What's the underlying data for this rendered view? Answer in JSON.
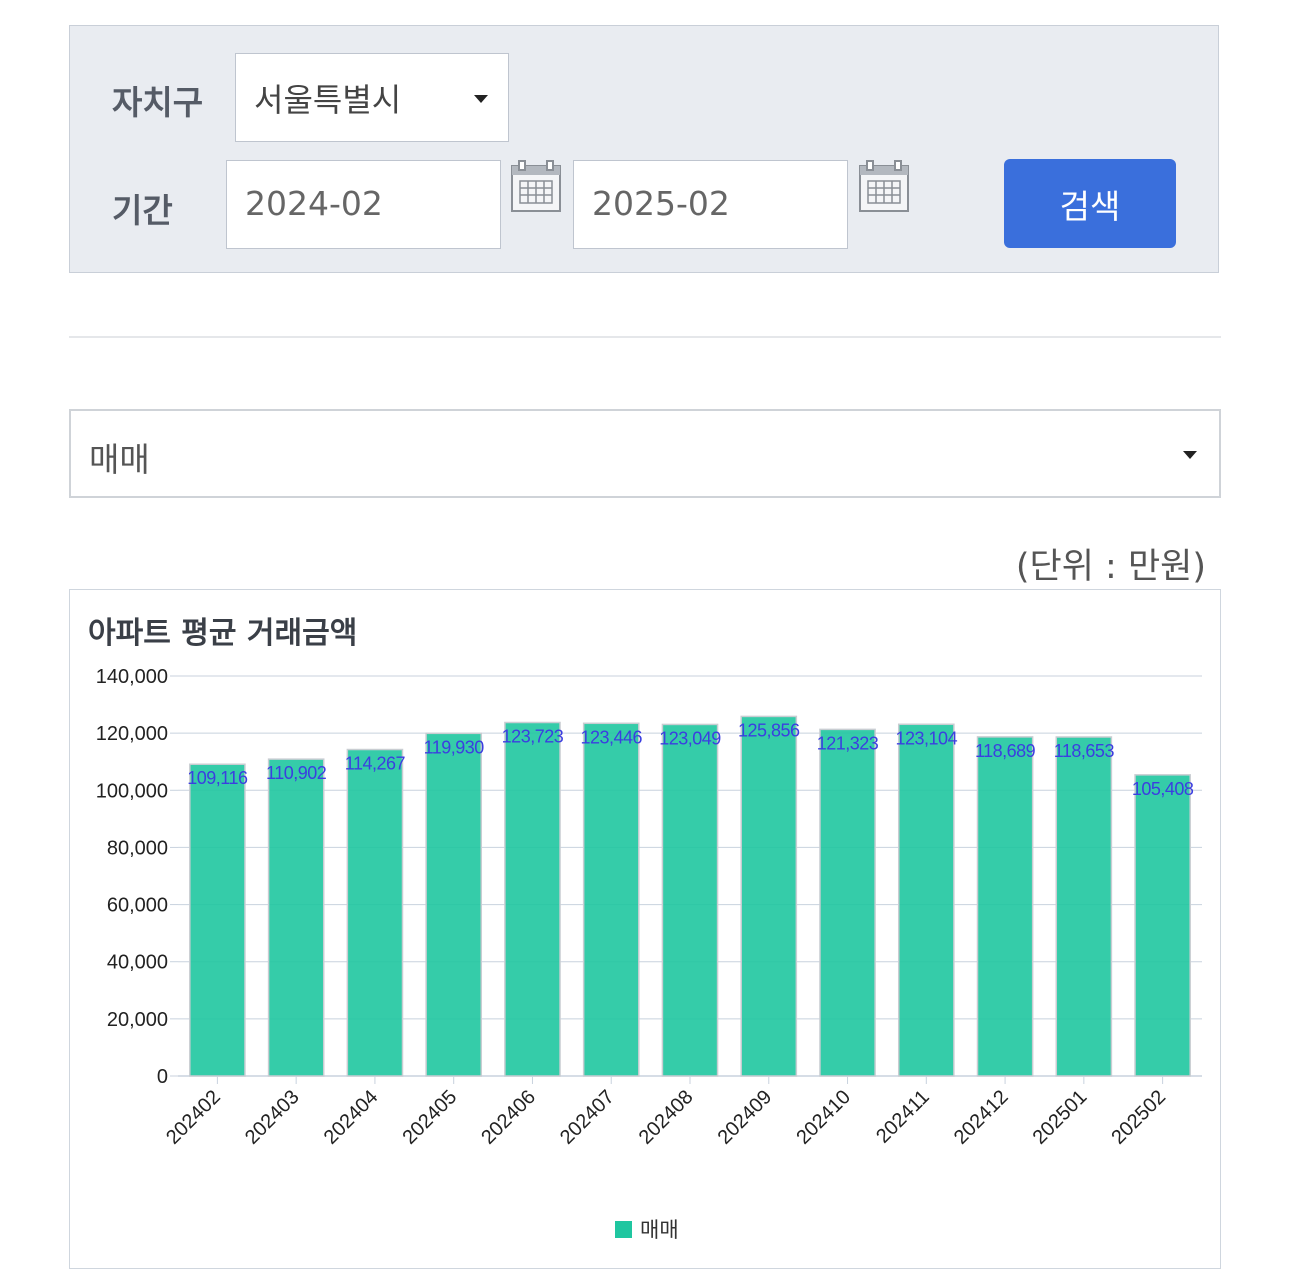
{
  "search": {
    "region_label": "자치구",
    "region_value": "서울특별시",
    "period_label": "기간",
    "start_date": "2024-02",
    "end_date": "2025-02",
    "search_button": "검색"
  },
  "type_select": {
    "value": "매매"
  },
  "unit": "(단위 : 만원)",
  "colors": {
    "bar": "#1fc6a0",
    "data_label": "#3b3ee0",
    "button": "#3a6fdc",
    "grid": "#c8d2de"
  },
  "chart_data": {
    "type": "bar",
    "title": "아파트 평균 거래금액",
    "categories": [
      "202402",
      "202403",
      "202404",
      "202405",
      "202406",
      "202407",
      "202408",
      "202409",
      "202410",
      "202411",
      "202412",
      "202501",
      "202502"
    ],
    "series": [
      {
        "name": "매매",
        "values": [
          109116,
          110902,
          114267,
          119930,
          123723,
          123446,
          123049,
          125856,
          121323,
          123104,
          118689,
          118653,
          105408
        ]
      }
    ],
    "value_labels": [
      "109,116",
      "110,902",
      "114,267",
      "119,930",
      "123,723",
      "123,446",
      "123,049",
      "125,856",
      "121,323",
      "123,104",
      "118,689",
      "118,653",
      "105,408"
    ],
    "ylim": [
      0,
      140000
    ],
    "yticks": [
      "0",
      "20,000",
      "40,000",
      "60,000",
      "80,000",
      "100,000",
      "120,000",
      "140,000"
    ],
    "grid": true,
    "legend_position": "bottom-center"
  }
}
